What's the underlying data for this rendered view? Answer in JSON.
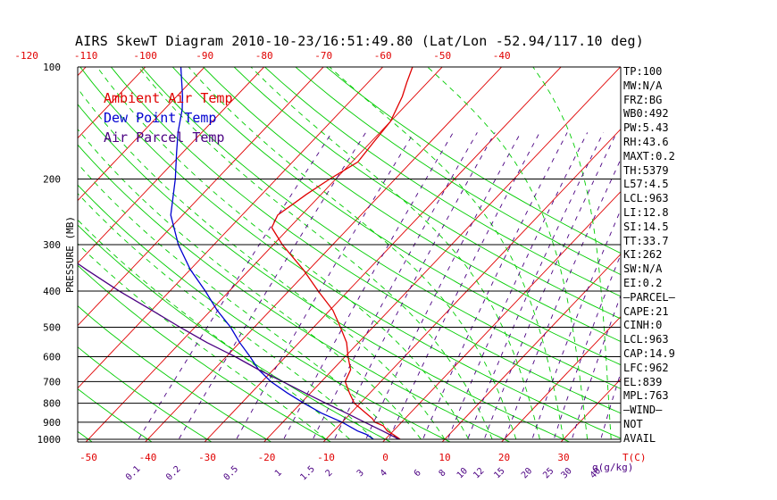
{
  "title": "AIRS SkewT Diagram 2010-10-23/16:51:49.80 (Lat/Lon -52.94/117.10 deg)",
  "legend": [
    {
      "label": "Ambient Air Temp",
      "color": "#e00000"
    },
    {
      "label": "Dew Point Temp",
      "color": "#0000d0"
    },
    {
      "label": "Air Parcel Temp",
      "color": "#4b0082"
    }
  ],
  "stats": [
    "TP:100",
    "MW:N/A",
    "FRZ:BG",
    "WB0:492",
    "PW:5.43",
    "RH:43.6",
    "MAXT:0.2",
    "TH:5379",
    "L57:4.5",
    "LCL:963",
    "LI:12.8",
    "SI:14.5",
    "TT:33.7",
    "KI:262",
    "SW:N/A",
    "EI:0.2",
    "—PARCEL—",
    "CAPE:21",
    "CINH:0",
    "LCL:963",
    "CAP:14.9",
    "LFC:962",
    "EL:839",
    "MPL:763",
    "—WIND—",
    "NOT",
    "AVAIL"
  ],
  "chart_data": {
    "type": "line",
    "title": "AIRS SkewT Diagram 2010-10-23/16:51:49.80 (Lat/Lon -52.94/117.10 deg)",
    "ylabel": "PRESSURE (MB)",
    "xlabel": "T(C)",
    "mixing_ratio_label": "g(g/kg)",
    "x_range": [
      -50,
      40
    ],
    "y_range": [
      1000,
      100
    ],
    "y_scale": "log",
    "bottom_temp_ticks": [
      -50,
      -40,
      -30,
      -20,
      -10,
      0,
      10,
      20,
      30
    ],
    "top_temp_ticks": [
      -120,
      -110,
      -100,
      -90,
      -80,
      -70,
      -60,
      -50,
      -40
    ],
    "pressure_ticks": [
      100,
      200,
      300,
      400,
      500,
      600,
      700,
      800,
      900,
      1000
    ],
    "mixing_ratio_ticks": [
      "0.1",
      "0.2",
      "0.5",
      "1",
      "1.5",
      "2",
      "3",
      "4",
      "6",
      "8",
      "10",
      "12",
      "15",
      "20",
      "25",
      "30",
      "40"
    ],
    "colors": {
      "isotherm": "#e00000",
      "dry_adiabat": "#00cc00",
      "moist_adiabat": "#00cc00",
      "mixing_ratio": "#4b0082",
      "axis": "#000000",
      "tick_text": "#e00000",
      "mr_text": "#4b0082"
    },
    "series": [
      {
        "name": "Ambient Air Temp",
        "color": "#e00000",
        "points": [
          [
            1000,
            2.5
          ],
          [
            970,
            0.5
          ],
          [
            950,
            -1
          ],
          [
            920,
            -2.5
          ],
          [
            900,
            -4.5
          ],
          [
            880,
            -5.5
          ],
          [
            850,
            -7.5
          ],
          [
            800,
            -11
          ],
          [
            750,
            -13.5
          ],
          [
            700,
            -16
          ],
          [
            650,
            -17
          ],
          [
            600,
            -19.5
          ],
          [
            550,
            -22
          ],
          [
            500,
            -25.5
          ],
          [
            450,
            -29.5
          ],
          [
            400,
            -35
          ],
          [
            350,
            -41
          ],
          [
            300,
            -48.5
          ],
          [
            270,
            -53
          ],
          [
            250,
            -54
          ],
          [
            230,
            -53
          ],
          [
            220,
            -52.5
          ],
          [
            200,
            -51
          ],
          [
            180,
            -49
          ],
          [
            160,
            -49.5
          ],
          [
            140,
            -50
          ],
          [
            120,
            -52
          ],
          [
            110,
            -53.5
          ],
          [
            100,
            -55
          ]
        ]
      },
      {
        "name": "Dew Point Temp",
        "color": "#0000d0",
        "points": [
          [
            1000,
            -2
          ],
          [
            970,
            -4
          ],
          [
            950,
            -6
          ],
          [
            900,
            -10
          ],
          [
            850,
            -15
          ],
          [
            800,
            -19.5
          ],
          [
            750,
            -24
          ],
          [
            700,
            -28.5
          ],
          [
            650,
            -32.5
          ],
          [
            600,
            -36
          ],
          [
            550,
            -40
          ],
          [
            500,
            -44
          ],
          [
            450,
            -49
          ],
          [
            400,
            -54
          ],
          [
            350,
            -60
          ],
          [
            300,
            -66
          ],
          [
            250,
            -72
          ],
          [
            200,
            -77
          ],
          [
            170,
            -81
          ],
          [
            150,
            -84
          ],
          [
            130,
            -87
          ],
          [
            120,
            -89
          ],
          [
            100,
            -94
          ]
        ]
      },
      {
        "name": "Air Parcel Temp",
        "color": "#4b0082",
        "points": [
          [
            1000,
            2.3
          ],
          [
            950,
            -1.8
          ],
          [
            900,
            -6.2
          ],
          [
            850,
            -10.8
          ],
          [
            800,
            -15.8
          ],
          [
            750,
            -21
          ],
          [
            700,
            -26.5
          ],
          [
            650,
            -32.5
          ],
          [
            600,
            -38.5
          ],
          [
            550,
            -45.5
          ],
          [
            500,
            -52.5
          ],
          [
            450,
            -60
          ],
          [
            400,
            -68.5
          ],
          [
            350,
            -77.5
          ],
          [
            300,
            -87.5
          ],
          [
            250,
            -99
          ],
          [
            200,
            -112
          ],
          [
            150,
            -128
          ],
          [
            120,
            -140
          ]
        ]
      }
    ]
  }
}
